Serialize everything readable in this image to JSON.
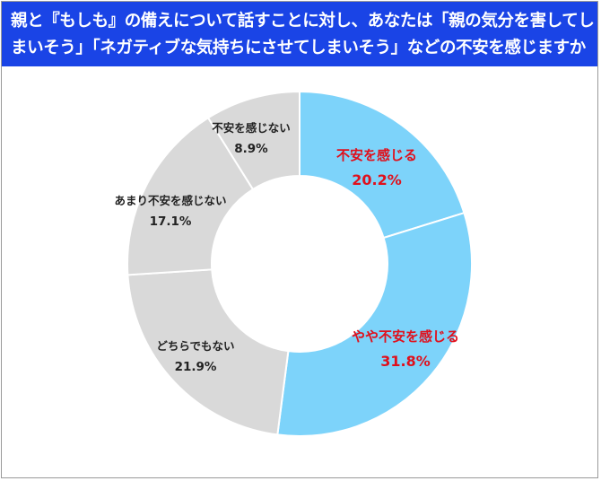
{
  "title_lines": [
    "親と『もしも』の備えについて話すことに対し、あなたは「親の気分を害してし",
    "まいそう」「ネガティブな気持ちにさせてしまいそう」などの不安を感じますか"
  ],
  "chart_data": {
    "type": "pie",
    "variant": "donut",
    "title": "親と『もしも』の備えについて話すことに対し、あなたは「親の気分を害してしまいそう」「ネガティブな気持ちにさせてしまいそう」などの不安を感じますか",
    "unit": "%",
    "start": "top",
    "direction": "clockwise",
    "slices": [
      {
        "label": "不安を感じる",
        "value": 20.2,
        "display": "20.2%",
        "color": "#7dd3fa",
        "label_color": "#e0101c"
      },
      {
        "label": "やや不安を感じる",
        "value": 31.8,
        "display": "31.8%",
        "color": "#7dd3fa",
        "label_color": "#e0101c"
      },
      {
        "label": "どちらでもない",
        "value": 21.9,
        "display": "21.9%",
        "color": "#d9d9d9",
        "label_color": "#222222"
      },
      {
        "label": "あまり不安を感じない",
        "value": 17.1,
        "display": "17.1%",
        "color": "#d9d9d9",
        "label_color": "#222222"
      },
      {
        "label": "不安を感じない",
        "value": 8.9,
        "display": "8.9%",
        "color": "#d9d9d9",
        "label_color": "#222222"
      }
    ]
  }
}
